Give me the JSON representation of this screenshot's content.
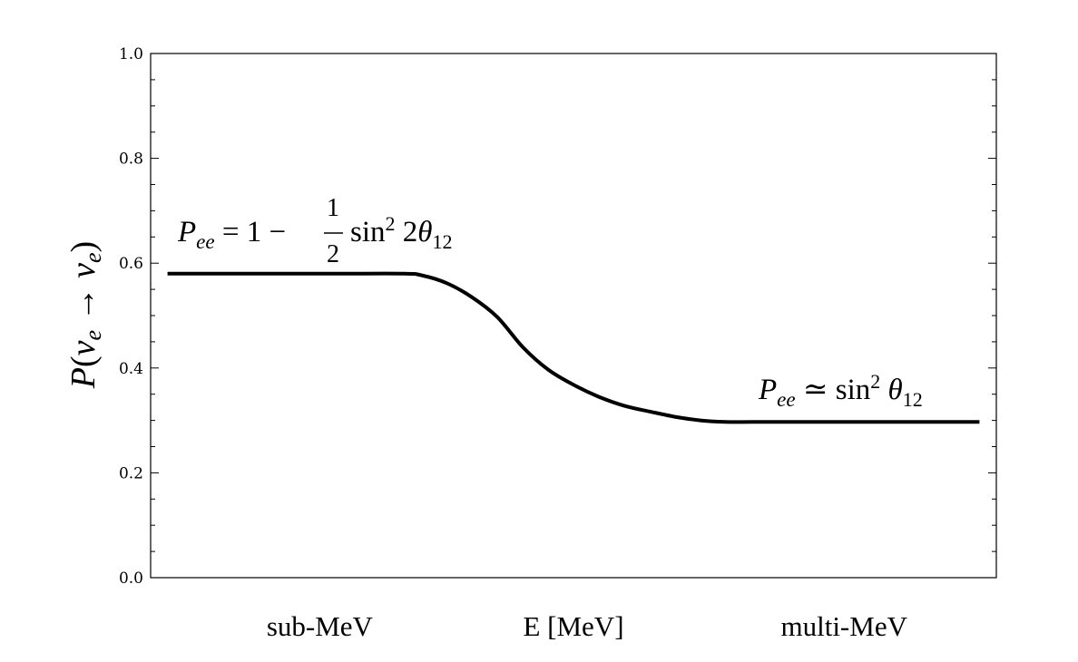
{
  "chart_data": {
    "type": "line",
    "ylabel_parts": {
      "p": "P",
      "open": "(",
      "nu1": "ν",
      "sub1": "e",
      "arrow": " → ",
      "nu2": "ν",
      "sub2": "e",
      "close": ")"
    },
    "ylim": [
      0,
      1
    ],
    "yticks": [
      "0.0",
      "0.2",
      "0.4",
      "0.6",
      "0.8",
      "1.0"
    ],
    "ytick_values": [
      0,
      0.2,
      0.4,
      0.6,
      0.8,
      1.0
    ],
    "yminor_step": 0.05,
    "xlim": [
      0,
      1
    ],
    "x_categories": [
      "sub-MeV",
      "E [MeV]",
      "multi-MeV"
    ],
    "x_category_positions": [
      0.2,
      0.5,
      0.82
    ],
    "grid": false,
    "series": [
      {
        "x": [
          0.02,
          0.075,
          0.15,
          0.225,
          0.3,
          0.32,
          0.35,
          0.38,
          0.41,
          0.44,
          0.47,
          0.5,
          0.53,
          0.56,
          0.59,
          0.62,
          0.65,
          0.68,
          0.71,
          0.74,
          0.77,
          0.8,
          0.86,
          0.92,
          0.98
        ],
        "y": [
          0.58,
          0.58,
          0.58,
          0.58,
          0.58,
          0.577,
          0.562,
          0.535,
          0.497,
          0.44,
          0.397,
          0.368,
          0.345,
          0.328,
          0.317,
          0.307,
          0.3,
          0.297,
          0.297,
          0.297,
          0.297,
          0.297,
          0.297,
          0.297,
          0.297
        ]
      }
    ],
    "annotations": [
      {
        "id": "low",
        "parts": {
          "p": "P",
          "sub": "ee",
          "eq": " = 1 − ",
          "num": "1",
          "den": "2",
          "fn": "sin",
          "sup": "2",
          "arg": " 2",
          "theta": "θ",
          "tsub": "12"
        }
      },
      {
        "id": "high",
        "parts": {
          "p": "P",
          "sub": "ee",
          "eq": " ≃ ",
          "fn": "sin",
          "sup": "2",
          "theta": " θ",
          "tsub": "12"
        }
      }
    ]
  }
}
